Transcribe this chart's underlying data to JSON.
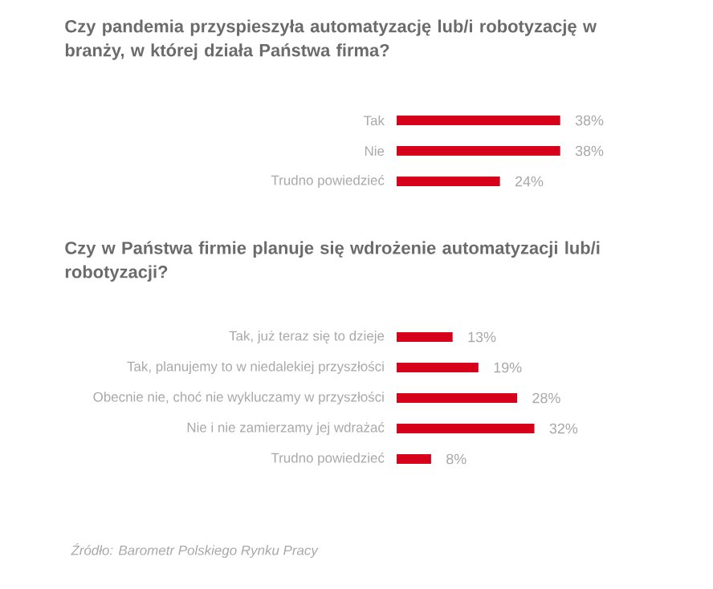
{
  "chart_data": [
    {
      "type": "bar",
      "orientation": "horizontal",
      "title": "Czy pandemia przyspieszyła automatyzację lub/i robotyzację w branży, w której działa Państwa firma?",
      "categories": [
        "Tak",
        "Nie",
        "Trudno powiedzieć"
      ],
      "values": [
        38,
        38,
        24
      ],
      "value_labels": [
        "38%",
        "38%",
        "24%"
      ],
      "color": "#d7001b",
      "tick_labels": "y"
    },
    {
      "type": "bar",
      "orientation": "horizontal",
      "title": "Czy w Państwa firmie planuje się wdrożenie automatyzacji lub/i robotyzacji?",
      "categories": [
        "Tak, już teraz się to dzieje",
        "Tak, planujemy to w niedalekiej przyszłości",
        "Obecnie nie, choć nie wykluczamy w przyszłości",
        "Nie i nie zamierzamy jej wdrażać",
        "Trudno powiedzieć"
      ],
      "values": [
        13,
        19,
        28,
        32,
        8
      ],
      "value_labels": [
        "13%",
        "19%",
        "28%",
        "32%",
        "8%"
      ],
      "color": "#d7001b",
      "tick_labels": "y",
      "annotations": [
        "Źródło: Barometr Polskiego Rynku Pracy"
      ]
    }
  ]
}
